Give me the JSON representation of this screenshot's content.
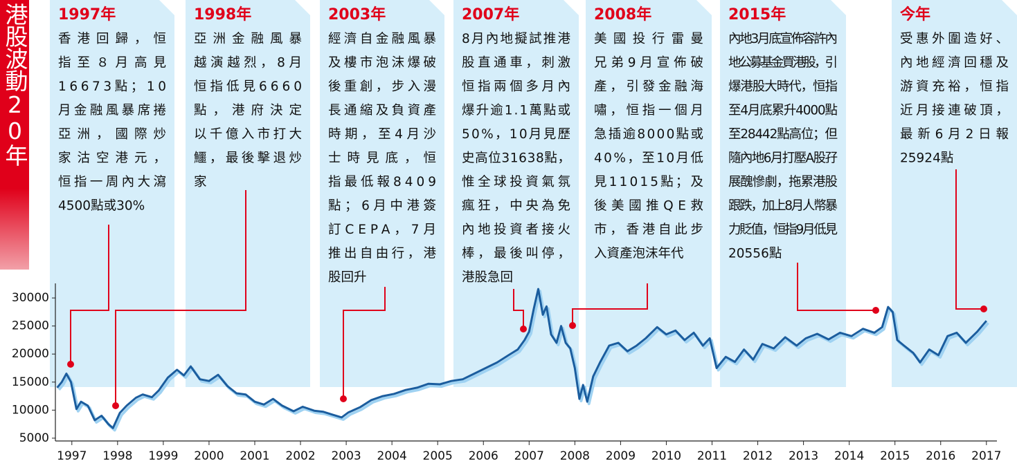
{
  "chart_data": {
    "type": "line",
    "title": "港股波動20年",
    "color": "#1b5d9e",
    "shadow_color": "#9fd2f2",
    "annotation_color": "#e0001a",
    "x": [
      1996.68,
      1996.78,
      1996.88,
      1996.98,
      1997.1,
      1997.2,
      1997.35,
      1997.5,
      1997.65,
      1997.8,
      1997.9,
      1998.05,
      1998.2,
      1998.4,
      1998.55,
      1998.75,
      1998.9,
      1999.1,
      1999.3,
      1999.45,
      1999.6,
      1999.8,
      2000.0,
      2000.2,
      2000.4,
      2000.6,
      2000.8,
      2001.0,
      2001.2,
      2001.4,
      2001.6,
      2001.85,
      2002.05,
      2002.3,
      2002.5,
      2002.7,
      2002.9,
      2003.05,
      2003.3,
      2003.55,
      2003.8,
      2004.05,
      2004.3,
      2004.55,
      2004.8,
      2005.05,
      2005.3,
      2005.55,
      2005.8,
      2006.05,
      2006.3,
      2006.55,
      2006.75,
      2006.9,
      2007.0,
      2007.1,
      2007.2,
      2007.3,
      2007.38,
      2007.48,
      2007.6,
      2007.7,
      2007.8,
      2007.9,
      2008.0,
      2008.1,
      2008.18,
      2008.27,
      2008.4,
      2008.55,
      2008.75,
      2008.95,
      2009.15,
      2009.35,
      2009.55,
      2009.8,
      2010.0,
      2010.2,
      2010.4,
      2010.6,
      2010.8,
      2010.95,
      2011.1,
      2011.3,
      2011.5,
      2011.7,
      2011.9,
      2012.1,
      2012.35,
      2012.6,
      2012.85,
      2013.05,
      2013.3,
      2013.55,
      2013.8,
      2014.05,
      2014.3,
      2014.55,
      2014.72,
      2014.85,
      2014.95,
      2015.05,
      2015.2,
      2015.4,
      2015.55,
      2015.75,
      2015.95,
      2016.15,
      2016.35,
      2016.55,
      2016.8,
      2017.0
    ],
    "values": [
      14000,
      15000,
      16500,
      15000,
      10200,
      11500,
      10800,
      8200,
      9000,
      7500,
      6800,
      9500,
      10800,
      12200,
      12800,
      12300,
      13500,
      15800,
      17200,
      16200,
      17800,
      15500,
      15200,
      16300,
      14300,
      13000,
      12800,
      11500,
      11000,
      12000,
      10800,
      9800,
      10600,
      9900,
      9700,
      9200,
      8700,
      9600,
      10500,
      11800,
      12500,
      12900,
      13600,
      14000,
      14700,
      14600,
      15200,
      15500,
      16500,
      17500,
      18500,
      19800,
      20800,
      22500,
      24000,
      28000,
      31600,
      27000,
      28500,
      23500,
      22000,
      25000,
      22000,
      21000,
      17500,
      12000,
      14500,
      11500,
      16000,
      18500,
      21500,
      22000,
      20500,
      21500,
      22800,
      24800,
      23500,
      24200,
      22500,
      23800,
      21500,
      22800,
      17500,
      19500,
      18600,
      20800,
      19000,
      21800,
      21000,
      23000,
      21500,
      22800,
      23600,
      22600,
      23800,
      23200,
      24500,
      23800,
      24800,
      28400,
      27500,
      22500,
      21500,
      20200,
      18500,
      20800,
      19800,
      23200,
      23800,
      22000,
      24000,
      25924
    ],
    "xlim": [
      1996.64,
      2017.23
    ],
    "ylim": [
      4500,
      32600
    ],
    "xticks": [
      1997,
      1998,
      1999,
      2000,
      2001,
      2002,
      2003,
      2004,
      2005,
      2006,
      2007,
      2008,
      2009,
      2010,
      2011,
      2012,
      2013,
      2014,
      2015,
      2016,
      2017
    ],
    "yticks": [
      5000,
      10000,
      15000,
      20000,
      25000,
      30000
    ],
    "annotations": [
      {
        "title": "1997年",
        "lines": [
          "香港回歸，恒",
          "指至８月高見",
          "16673點；10",
          "月金融風暴席捲",
          "亞洲，國際炒",
          "家沽空港元，",
          "恒指一周內大瀉",
          "4500點或30%"
        ]
      },
      {
        "title": "1998年",
        "lines": [
          "亞洲金融風暴",
          "越演越烈，8月",
          "恒指低見6660",
          "點，港府決定",
          "以千億入市打大",
          "鱷，最後擊退炒",
          "家"
        ]
      },
      {
        "title": "2003年",
        "lines": [
          "經濟自金融風暴",
          "及樓市泡沫爆破",
          "後重創，步入漫",
          "長通縮及負資產",
          "時期，至4月沙",
          "士時見底，恒",
          "指最低報8409",
          "點；6月中港簽",
          "訂CEPA，7月",
          "推出自由行，港",
          "股回升"
        ]
      },
      {
        "title": "2007年",
        "lines": [
          "8月內地擬試推港",
          "股直通車，刺激",
          "恒指兩個多月內",
          "爆升逾1.1萬點或",
          "50%，10月見歷",
          "史高位31638點，",
          "惟全球投資氣氛",
          "瘋狂，中央為免",
          "內地投資者接火",
          "棒，最後叫停，",
          "港股急回"
        ]
      },
      {
        "title": "2008年",
        "lines": [
          "美國投行雷曼",
          "兄弟9月宣佈破",
          "產，引發金融海",
          "嘯，恒指一個月",
          "急插逾8000點或",
          "40%，至10月低",
          "見11015點；及",
          "後美國推QE救",
          "市，香港自此步",
          "入資產泡沫年代"
        ]
      },
      {
        "title": "2015年",
        "lines": [
          "內地3月底宣佈容許內",
          "地公募基金買港股，引",
          "爆港股大時代，恒指",
          "至4月底累升4000點",
          "至28442點高位；但",
          "隨內地6月打壓A股孖",
          "展醜慘劇，拖累港股",
          "跟跌，加上8月人幣暴",
          "力貶值，恒指9月低見",
          "20556點"
        ]
      },
      {
        "title": "今年",
        "lines": [
          "受惠外圍造好、",
          "內地經濟回穩及",
          "游資充裕，恒指",
          "近月接連破頂，",
          "最新6月2日報",
          "25924點"
        ]
      }
    ]
  }
}
